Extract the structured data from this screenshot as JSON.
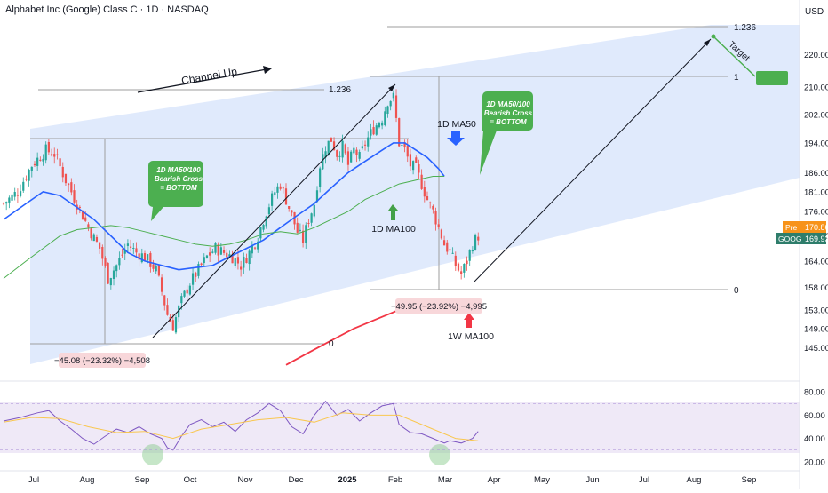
{
  "header": {
    "title": "Alphabet Inc (Google) Class C · 1D · NASDAQ",
    "currency": "USD"
  },
  "colors": {
    "up": "#26a69a",
    "down": "#ef5350",
    "ma50": "#2962ff",
    "ma100": "#4caf50",
    "ma100w": "#f23645",
    "rsi": "#7e57c2",
    "rsi_ma": "#f9c74f",
    "channel": "#dbe6fb",
    "note_green": "#4caf50",
    "pre": "#f7931a",
    "last": "#2e7d6b"
  },
  "chart_data": [
    {
      "type": "candlestick",
      "title": "Alphabet Inc (Google) Class C · 1D · NASDAQ",
      "x_ticks": [
        "Jul",
        "Aug",
        "Sep",
        "Oct",
        "Nov",
        "Dec",
        "2025",
        "Feb",
        "Mar",
        "Apr",
        "May",
        "Jun",
        "Jul",
        "Aug",
        "Sep"
      ],
      "y_ticks": [
        145,
        149,
        153,
        158,
        164,
        170,
        176,
        181,
        186,
        194,
        202,
        210,
        220
      ],
      "y_scale": "log",
      "ylim": [
        142,
        226
      ],
      "close_path": [
        [
          0,
          178
        ],
        [
          5,
          181
        ],
        [
          10,
          188
        ],
        [
          15,
          192
        ],
        [
          18,
          191
        ],
        [
          22,
          184
        ],
        [
          26,
          178
        ],
        [
          30,
          172
        ],
        [
          34,
          167
        ],
        [
          37,
          160
        ],
        [
          40,
          163
        ],
        [
          44,
          168
        ],
        [
          47,
          166
        ],
        [
          50,
          165
        ],
        [
          54,
          162
        ],
        [
          56,
          157
        ],
        [
          58,
          152
        ],
        [
          60,
          149.5
        ],
        [
          63,
          155
        ],
        [
          66,
          159
        ],
        [
          69,
          162
        ],
        [
          72,
          165
        ],
        [
          75,
          167
        ],
        [
          78,
          166
        ],
        [
          81,
          165
        ],
        [
          84,
          163
        ],
        [
          87,
          166
        ],
        [
          90,
          170
        ],
        [
          93,
          176
        ],
        [
          96,
          181
        ],
        [
          98,
          183
        ],
        [
          100,
          179
        ],
        [
          102,
          175
        ],
        [
          104,
          171
        ],
        [
          106,
          169
        ],
        [
          108,
          174
        ],
        [
          110,
          178
        ],
        [
          112,
          188
        ],
        [
          114,
          193
        ],
        [
          116,
          195
        ],
        [
          118,
          191
        ],
        [
          120,
          193
        ],
        [
          122,
          188
        ],
        [
          124,
          192
        ],
        [
          126,
          190
        ],
        [
          128,
          194
        ],
        [
          131,
          198
        ],
        [
          134,
          201
        ],
        [
          136,
          206
        ],
        [
          138,
          207
        ],
        [
          140,
          194
        ],
        [
          142,
          192
        ],
        [
          144,
          188
        ],
        [
          146,
          187
        ],
        [
          148,
          183
        ],
        [
          150,
          179
        ],
        [
          152,
          176
        ],
        [
          154,
          172
        ],
        [
          156,
          168
        ],
        [
          158,
          166
        ],
        [
          160,
          163
        ],
        [
          162,
          161
        ],
        [
          164,
          164
        ],
        [
          166,
          168
        ],
        [
          168,
          170
        ]
      ],
      "moving_averages": [
        {
          "name": "1D MA50",
          "points": [
            [
              0,
              174
            ],
            [
              8,
              178
            ],
            [
              14,
              181
            ],
            [
              20,
              180
            ],
            [
              26,
              177
            ],
            [
              32,
              174
            ],
            [
              38,
              170
            ],
            [
              44,
              166
            ],
            [
              50,
              164
            ],
            [
              56,
              163
            ],
            [
              62,
              162
            ],
            [
              68,
              162.5
            ],
            [
              74,
              163
            ],
            [
              80,
              165
            ],
            [
              86,
              167
            ],
            [
              92,
              169
            ],
            [
              98,
              172
            ],
            [
              104,
              175
            ],
            [
              110,
              178
            ],
            [
              116,
              182
            ],
            [
              122,
              186
            ],
            [
              128,
              189
            ],
            [
              134,
              192
            ],
            [
              138,
              194
            ],
            [
              142,
              194
            ],
            [
              146,
              192
            ],
            [
              150,
              190
            ],
            [
              154,
              187
            ],
            [
              156,
              185
            ]
          ]
        },
        {
          "name": "1D MA100",
          "points": [
            [
              0,
              160
            ],
            [
              8,
              164
            ],
            [
              14,
              167
            ],
            [
              20,
              170
            ],
            [
              26,
              171.5
            ],
            [
              32,
              172
            ],
            [
              38,
              172.5
            ],
            [
              44,
              172
            ],
            [
              50,
              171
            ],
            [
              56,
              170
            ],
            [
              62,
              169
            ],
            [
              68,
              168
            ],
            [
              74,
              167.5
            ],
            [
              80,
              168
            ],
            [
              86,
              169
            ],
            [
              92,
              170.5
            ],
            [
              98,
              171
            ],
            [
              104,
              170.5
            ],
            [
              110,
              172
            ],
            [
              116,
              174
            ],
            [
              122,
              176
            ],
            [
              128,
              179
            ],
            [
              134,
              181
            ],
            [
              140,
              183
            ],
            [
              146,
              184
            ],
            [
              152,
              185
            ],
            [
              156,
              185
            ]
          ]
        },
        {
          "name": "1W MA100",
          "points": [
            [
              100,
              141.5
            ],
            [
              108,
              144
            ],
            [
              116,
              146.5
            ],
            [
              124,
              149
            ],
            [
              132,
              151
            ],
            [
              140,
              153
            ],
            [
              148,
              154.3
            ],
            [
              154,
              155
            ]
          ]
        }
      ],
      "annotations": [
        "Channel Up",
        "1.236",
        "1",
        "0",
        "1.236",
        "0",
        "1D MA50",
        "1D MA100",
        "1W MA100",
        "Target",
        "220.00"
      ],
      "notes": [
        {
          "lines": [
            "1D MA50/100",
            "Bearish Cross",
            "= BOTTOM"
          ]
        },
        {
          "lines": [
            "1D MA50/100",
            "Bearish Cross",
            "= BOTTOM"
          ]
        }
      ],
      "measurements": [
        "−45.08 (−23.32%) −4,508",
        "−49.95 (−23.92%) −4,995"
      ],
      "price_labels": [
        {
          "label": "Pre",
          "value": "170.86"
        },
        {
          "label": "GOOG",
          "value": "169.93"
        }
      ]
    },
    {
      "type": "line",
      "title": "",
      "y_ticks": [
        20,
        40,
        60,
        80
      ],
      "ylim": [
        16,
        84
      ],
      "band": [
        30,
        70
      ],
      "series": [
        {
          "name": "",
          "points": [
            [
              0,
              55
            ],
            [
              6,
              58
            ],
            [
              12,
              62
            ],
            [
              16,
              64
            ],
            [
              20,
              55
            ],
            [
              24,
              48
            ],
            [
              28,
              40
            ],
            [
              32,
              35
            ],
            [
              36,
              42
            ],
            [
              40,
              48
            ],
            [
              44,
              45
            ],
            [
              48,
              50
            ],
            [
              52,
              44
            ],
            [
              56,
              40
            ],
            [
              58,
              32
            ],
            [
              60,
              30
            ],
            [
              63,
              42
            ],
            [
              66,
              52
            ],
            [
              70,
              56
            ],
            [
              74,
              50
            ],
            [
              78,
              54
            ],
            [
              82,
              46
            ],
            [
              86,
              56
            ],
            [
              90,
              62
            ],
            [
              94,
              70
            ],
            [
              98,
              64
            ],
            [
              102,
              50
            ],
            [
              106,
              44
            ],
            [
              110,
              60
            ],
            [
              114,
              72
            ],
            [
              118,
              60
            ],
            [
              122,
              65
            ],
            [
              126,
              55
            ],
            [
              130,
              62
            ],
            [
              134,
              68
            ],
            [
              138,
              70
            ],
            [
              140,
              52
            ],
            [
              144,
              45
            ],
            [
              148,
              44
            ],
            [
              152,
              40
            ],
            [
              156,
              36
            ],
            [
              158,
              38
            ],
            [
              162,
              36
            ],
            [
              166,
              40
            ],
            [
              168,
              46
            ]
          ]
        },
        {
          "name": "",
          "points": [
            [
              0,
              54
            ],
            [
              10,
              58
            ],
            [
              20,
              57
            ],
            [
              30,
              50
            ],
            [
              40,
              45
            ],
            [
              50,
              46
            ],
            [
              60,
              40
            ],
            [
              70,
              48
            ],
            [
              80,
              52
            ],
            [
              90,
              56
            ],
            [
              100,
              58
            ],
            [
              110,
              54
            ],
            [
              120,
              62
            ],
            [
              130,
              60
            ],
            [
              140,
              60
            ],
            [
              150,
              50
            ],
            [
              160,
              40
            ],
            [
              168,
              38
            ]
          ]
        }
      ]
    }
  ]
}
